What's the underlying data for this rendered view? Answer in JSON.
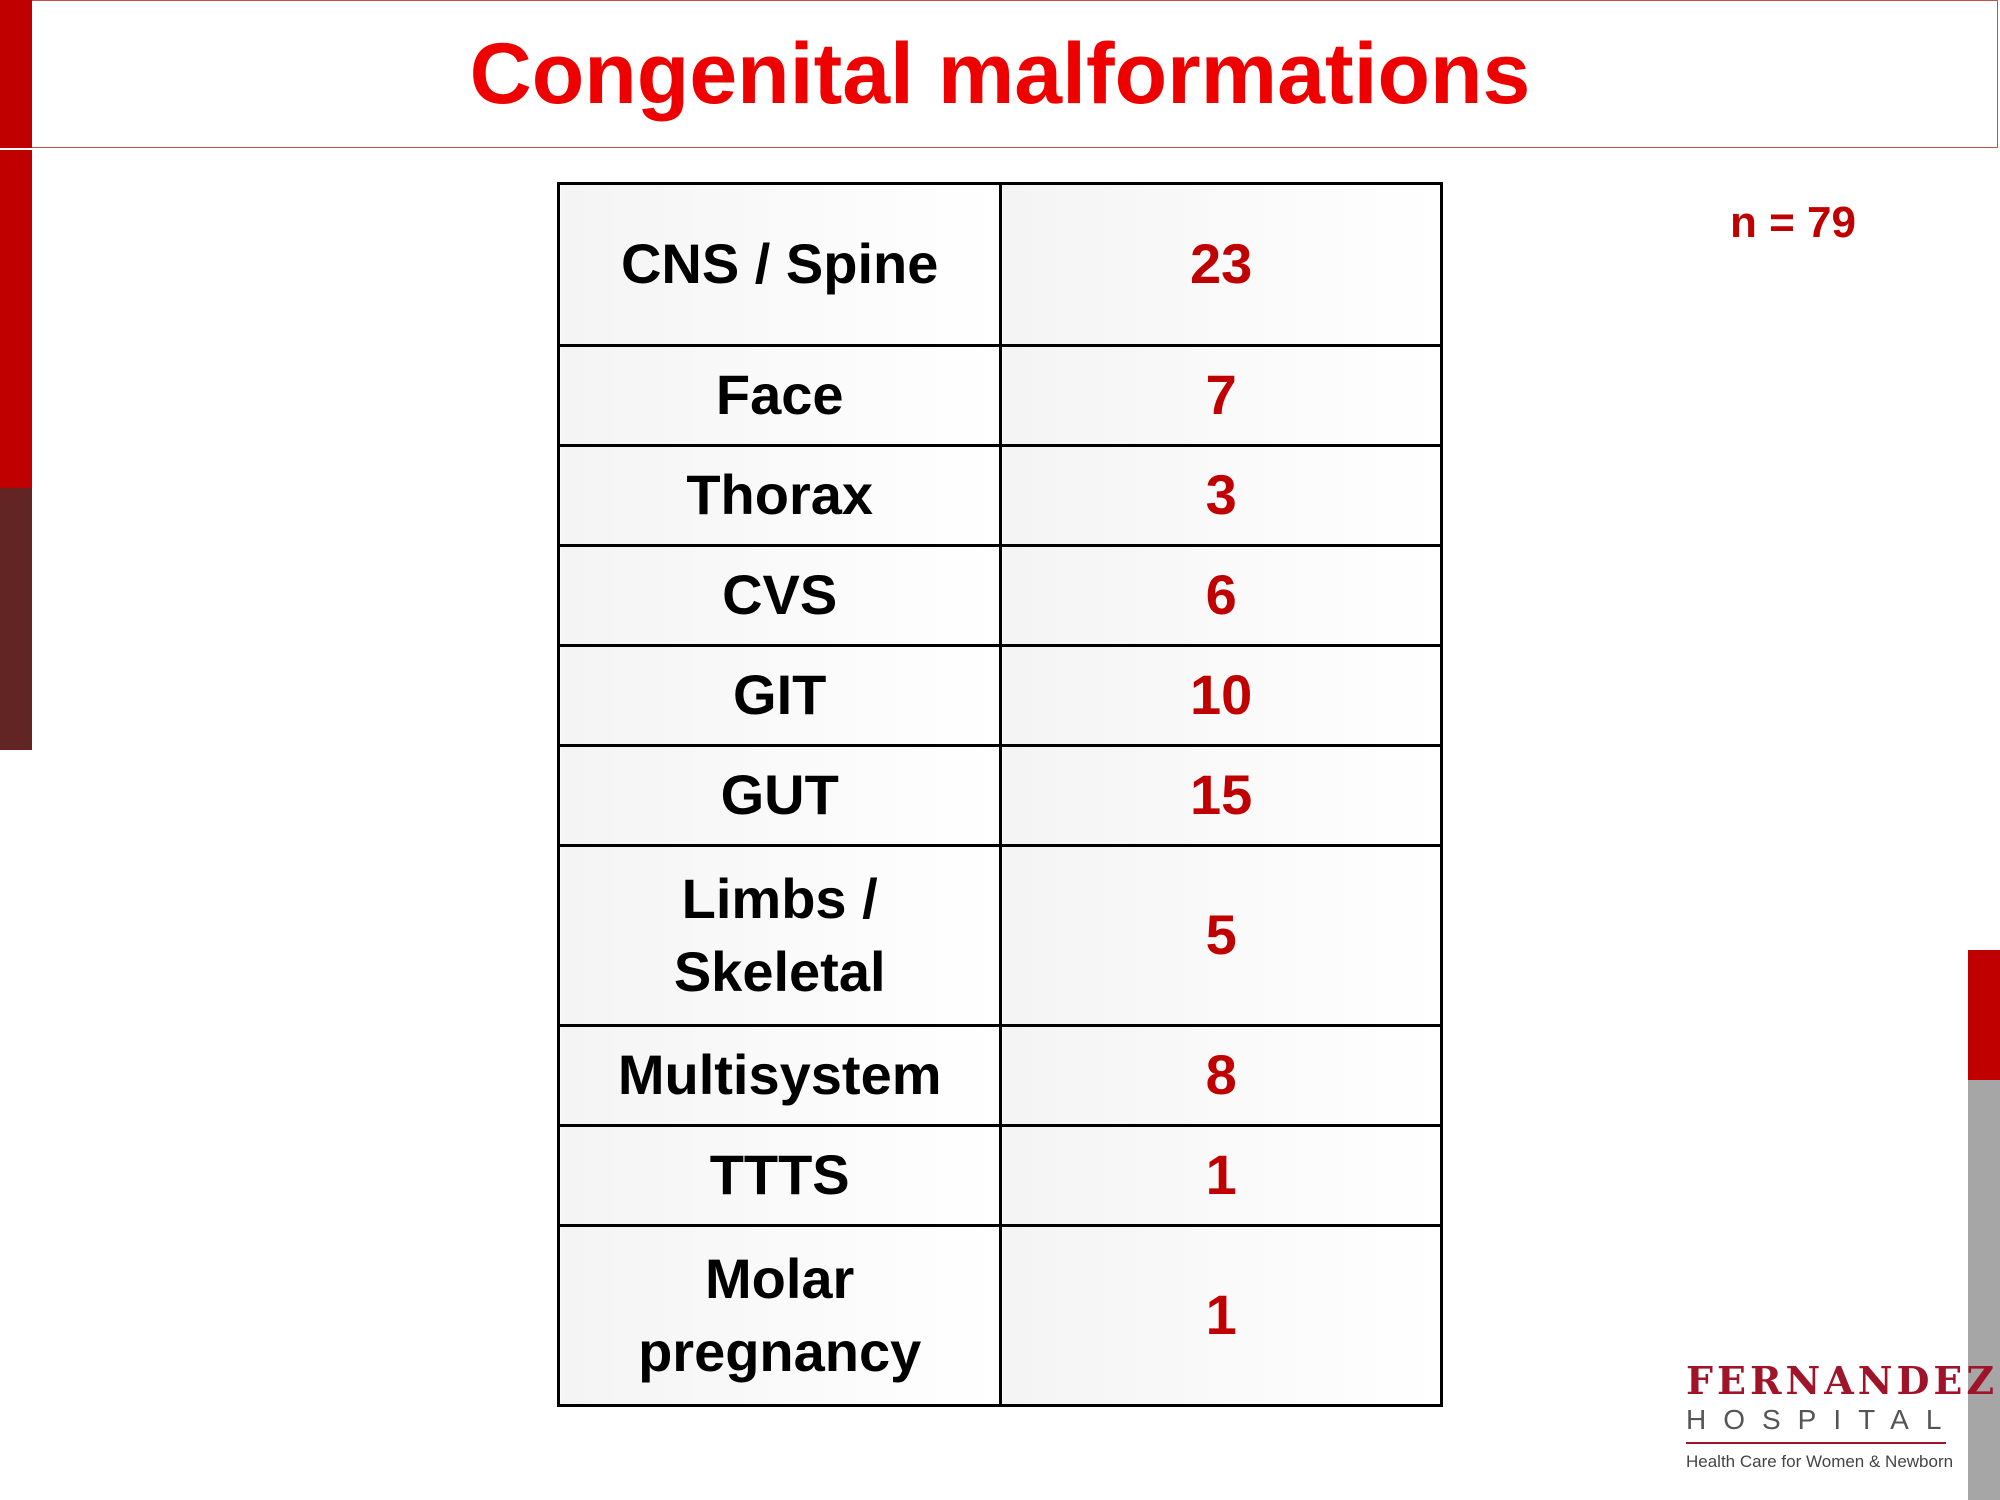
{
  "slide": {
    "title": "Congenital malformations",
    "n_label": "n = 79"
  },
  "table": {
    "rows": [
      {
        "category": "CNS / Spine",
        "count": "23"
      },
      {
        "category": "Face",
        "count": "7"
      },
      {
        "category": "Thorax",
        "count": "3"
      },
      {
        "category": "CVS",
        "count": "6"
      },
      {
        "category": "GIT",
        "count": "10"
      },
      {
        "category": "GUT",
        "count": "15"
      },
      {
        "category": "Limbs / Skeletal",
        "count": "5"
      },
      {
        "category": "Multisystem",
        "count": "8"
      },
      {
        "category": "TTTS",
        "count": "1"
      },
      {
        "category": "Molar pregnancy",
        "count": "1"
      }
    ]
  },
  "logo": {
    "name": "FERNANDEZ",
    "subtitle": "HOSPITAL",
    "tagline": "Health Care for Women & Newborn"
  },
  "colors": {
    "title": "#ee0000",
    "accent_red": "#c00000",
    "accent_dark": "#632523",
    "accent_grey": "#a6a6a6"
  }
}
